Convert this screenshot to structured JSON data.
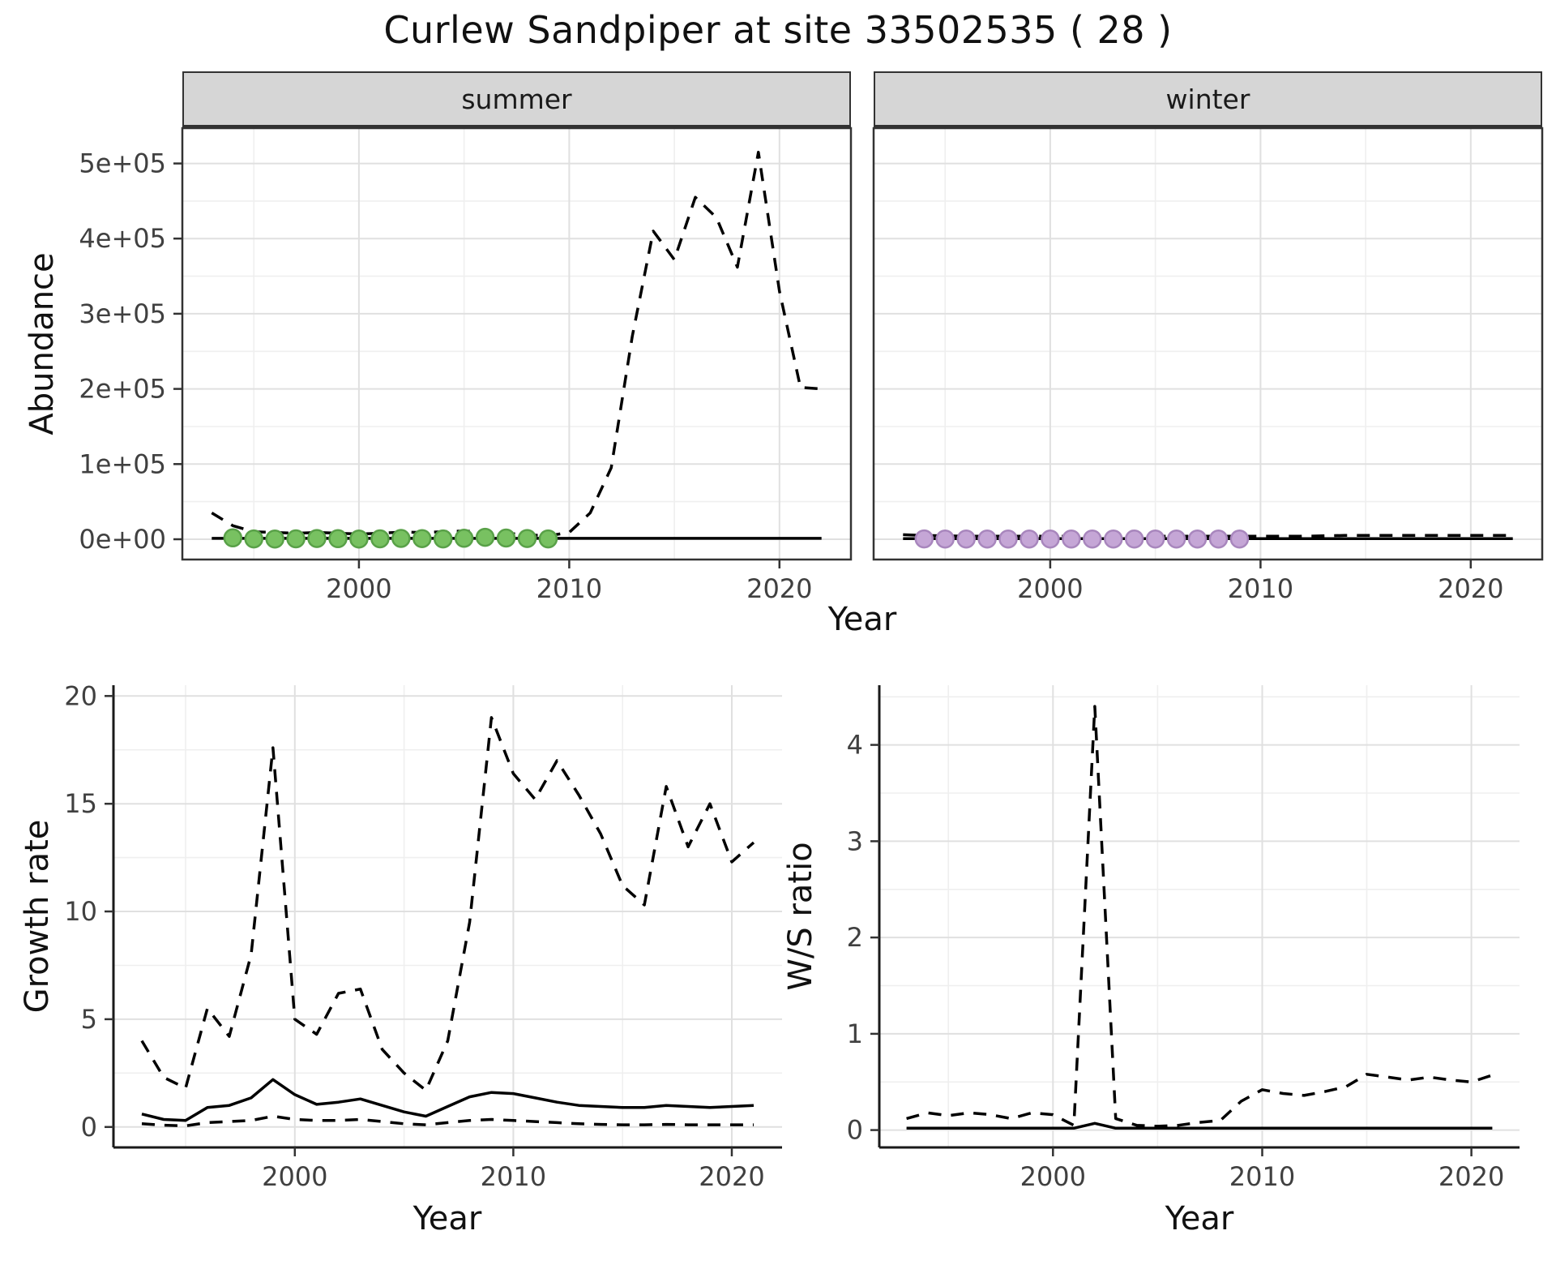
{
  "title": "Curlew Sandpiper at site 33502535 ( 28 )",
  "colors": {
    "line": "#000000",
    "grid_major": "#e0e0e0",
    "grid_minor": "#efefef",
    "strip_bg": "#d6d6d6",
    "summer_point_fill": "#78c161",
    "summer_point_stroke": "#59a148",
    "winter_point_fill": "#c5a6d6",
    "winter_point_stroke": "#a886bd"
  },
  "chart_data": [
    {
      "name": "abundance-summer",
      "type": "line",
      "facet": "summer",
      "xlabel": "Year",
      "ylabel": "Abundance",
      "xlim": [
        1991.6,
        2023.4
      ],
      "ylim": [
        -27000,
        547000
      ],
      "xticks": [
        2000,
        2010,
        2020
      ],
      "xtick_labels": [
        "2000",
        "2010",
        "2020"
      ],
      "yticks": [
        0,
        100000,
        200000,
        300000,
        400000,
        500000
      ],
      "ytick_labels": [
        "0e+00",
        "1e+05",
        "2e+05",
        "3e+05",
        "4e+05",
        "5e+05"
      ],
      "show_y_labels": true,
      "border": "box",
      "series": [
        {
          "name": "upper-ci",
          "style": "dashed",
          "x": [
            1993,
            1994,
            1995,
            1996,
            1997,
            1998,
            1999,
            2000,
            2001,
            2002,
            2003,
            2004,
            2005,
            2006,
            2007,
            2008,
            2009,
            2010,
            2011,
            2012,
            2013,
            2014,
            2015,
            2016,
            2017,
            2018,
            2019,
            2020,
            2021,
            2022
          ],
          "y": [
            35000,
            18000,
            10000,
            9000,
            8000,
            9000,
            8000,
            7000,
            8000,
            9500,
            9000,
            10000,
            11000,
            9500,
            8000,
            6000,
            4500,
            9000,
            35000,
            95000,
            270000,
            410000,
            372000,
            455000,
            428000,
            362000,
            515000,
            330000,
            202000,
            200000
          ]
        },
        {
          "name": "trend",
          "style": "solid",
          "x": [
            1993,
            1994,
            1995,
            1996,
            1997,
            1998,
            1999,
            2000,
            2001,
            2002,
            2003,
            2004,
            2005,
            2006,
            2007,
            2008,
            2009,
            2010,
            2011,
            2012,
            2013,
            2014,
            2015,
            2016,
            2017,
            2018,
            2019,
            2020,
            2021,
            2022
          ],
          "y": [
            1200,
            1200,
            1200,
            1200,
            1200,
            1200,
            1200,
            1200,
            1200,
            1200,
            1200,
            1200,
            1200,
            1200,
            1200,
            1200,
            1200,
            1200,
            1200,
            1200,
            1200,
            1200,
            1200,
            1200,
            1200,
            1200,
            1200,
            1200,
            1200,
            1200
          ]
        },
        {
          "name": "observed-counts",
          "style": "points",
          "fill": "#78c161",
          "stroke": "#59a148",
          "x": [
            1994,
            1995,
            1996,
            1997,
            1998,
            1999,
            2000,
            2001,
            2002,
            2003,
            2004,
            2005,
            2006,
            2007,
            2008,
            2009
          ],
          "y": [
            1800,
            400,
            300,
            500,
            900,
            700,
            350,
            550,
            1000,
            800,
            450,
            1300,
            2600,
            1600,
            900,
            450
          ]
        }
      ]
    },
    {
      "name": "abundance-winter",
      "type": "line",
      "facet": "winter",
      "xlabel": "Year",
      "ylabel": "Abundance",
      "xlim": [
        1991.6,
        2023.4
      ],
      "ylim": [
        -27000,
        547000
      ],
      "xticks": [
        2000,
        2010,
        2020
      ],
      "xtick_labels": [
        "2000",
        "2010",
        "2020"
      ],
      "yticks": [
        0,
        100000,
        200000,
        300000,
        400000,
        500000
      ],
      "ytick_labels": [
        "0e+00",
        "1e+05",
        "2e+05",
        "3e+05",
        "4e+05",
        "5e+05"
      ],
      "show_y_labels": false,
      "border": "box",
      "series": [
        {
          "name": "upper-ci",
          "style": "dashed",
          "x": [
            1993,
            1994,
            1995,
            1996,
            1997,
            1998,
            1999,
            2000,
            2001,
            2002,
            2003,
            2004,
            2005,
            2006,
            2007,
            2008,
            2009,
            2010,
            2011,
            2012,
            2013,
            2014,
            2015,
            2016,
            2017,
            2018,
            2019,
            2020,
            2021,
            2022
          ],
          "y": [
            6000,
            5000,
            4500,
            4000,
            4000,
            4000,
            4000,
            4000,
            4000,
            4000,
            4000,
            4000,
            4000,
            4000,
            4000,
            4000,
            4000,
            4000,
            4000,
            4000,
            4500,
            5000,
            5000,
            5000,
            5000,
            5000,
            5000,
            5000,
            5000,
            5000
          ]
        },
        {
          "name": "trend",
          "style": "solid",
          "x": [
            1993,
            1994,
            1995,
            1996,
            1997,
            1998,
            1999,
            2000,
            2001,
            2002,
            2003,
            2004,
            2005,
            2006,
            2007,
            2008,
            2009,
            2010,
            2011,
            2012,
            2013,
            2014,
            2015,
            2016,
            2017,
            2018,
            2019,
            2020,
            2021,
            2022
          ],
          "y": [
            700,
            700,
            700,
            700,
            700,
            700,
            700,
            700,
            700,
            700,
            700,
            700,
            700,
            700,
            700,
            700,
            700,
            700,
            700,
            700,
            700,
            700,
            700,
            700,
            700,
            700,
            700,
            700,
            700,
            700
          ]
        },
        {
          "name": "observed-counts",
          "style": "points",
          "fill": "#c5a6d6",
          "stroke": "#a886bd",
          "x": [
            1994,
            1995,
            1996,
            1997,
            1998,
            1999,
            2000,
            2001,
            2002,
            2003,
            2004,
            2005,
            2006,
            2007,
            2008,
            2009
          ],
          "y": [
            400,
            300,
            250,
            300,
            350,
            300,
            250,
            300,
            350,
            300,
            250,
            300,
            350,
            300,
            250,
            300
          ]
        }
      ]
    },
    {
      "name": "growth-rate",
      "type": "line",
      "facet": "",
      "xlabel": "Year",
      "ylabel": "Growth rate",
      "xlim": [
        1991.7,
        2022.3
      ],
      "ylim": [
        -0.95,
        20.5
      ],
      "xticks": [
        2000,
        2010,
        2020
      ],
      "xtick_labels": [
        "2000",
        "2010",
        "2020"
      ],
      "yticks": [
        0,
        5,
        10,
        15,
        20
      ],
      "ytick_labels": [
        "0",
        "5",
        "10",
        "15",
        "20"
      ],
      "show_y_labels": true,
      "border": "axes",
      "series": [
        {
          "name": "upper-ci",
          "style": "dashed",
          "x": [
            1993,
            1994,
            1995,
            1996,
            1997,
            1998,
            1999,
            2000,
            2001,
            2002,
            2003,
            2004,
            2005,
            2006,
            2007,
            2008,
            2009,
            2010,
            2011,
            2012,
            2013,
            2014,
            2015,
            2016,
            2017,
            2018,
            2019,
            2020,
            2021
          ],
          "y": [
            4.0,
            2.3,
            1.8,
            5.5,
            4.2,
            8.0,
            17.6,
            5.0,
            4.3,
            6.2,
            6.4,
            3.6,
            2.5,
            1.7,
            4.0,
            9.5,
            19.0,
            16.4,
            15.2,
            17.0,
            15.4,
            13.6,
            11.2,
            10.3,
            15.8,
            13.0,
            15.0,
            12.3,
            13.2
          ]
        },
        {
          "name": "lower-ci",
          "style": "dashed",
          "x": [
            1993,
            1994,
            1995,
            1996,
            1997,
            1998,
            1999,
            2000,
            2001,
            2002,
            2003,
            2004,
            2005,
            2006,
            2007,
            2008,
            2009,
            2010,
            2011,
            2012,
            2013,
            2014,
            2015,
            2016,
            2017,
            2018,
            2019,
            2020,
            2021
          ],
          "y": [
            0.15,
            0.08,
            0.05,
            0.2,
            0.25,
            0.3,
            0.5,
            0.35,
            0.3,
            0.3,
            0.35,
            0.25,
            0.15,
            0.1,
            0.2,
            0.3,
            0.35,
            0.3,
            0.25,
            0.2,
            0.15,
            0.12,
            0.1,
            0.1,
            0.12,
            0.1,
            0.1,
            0.1,
            0.1
          ]
        },
        {
          "name": "trend",
          "style": "solid",
          "x": [
            1993,
            1994,
            1995,
            1996,
            1997,
            1998,
            1999,
            2000,
            2001,
            2002,
            2003,
            2004,
            2005,
            2006,
            2007,
            2008,
            2009,
            2010,
            2011,
            2012,
            2013,
            2014,
            2015,
            2016,
            2017,
            2018,
            2019,
            2020,
            2021
          ],
          "y": [
            0.6,
            0.35,
            0.3,
            0.9,
            1.0,
            1.35,
            2.2,
            1.5,
            1.05,
            1.15,
            1.3,
            1.0,
            0.7,
            0.5,
            0.95,
            1.4,
            1.6,
            1.55,
            1.35,
            1.15,
            1.0,
            0.95,
            0.9,
            0.9,
            1.0,
            0.95,
            0.9,
            0.95,
            1.0
          ]
        }
      ]
    },
    {
      "name": "ws-ratio",
      "type": "line",
      "facet": "",
      "xlabel": "Year",
      "ylabel": "W/S ratio",
      "xlim": [
        1991.7,
        2022.3
      ],
      "ylim": [
        -0.18,
        4.62
      ],
      "xticks": [
        2000,
        2010,
        2020
      ],
      "xtick_labels": [
        "2000",
        "2010",
        "2020"
      ],
      "yticks": [
        0,
        1,
        2,
        3,
        4
      ],
      "ytick_labels": [
        "0",
        "1",
        "2",
        "3",
        "4"
      ],
      "show_y_labels": true,
      "border": "axes",
      "series": [
        {
          "name": "upper-ci",
          "style": "dashed",
          "x": [
            1993,
            1994,
            1995,
            1996,
            1997,
            1998,
            1999,
            2000,
            2001,
            2002,
            2003,
            2004,
            2005,
            2006,
            2007,
            2008,
            2009,
            2010,
            2011,
            2012,
            2013,
            2014,
            2015,
            2016,
            2017,
            2018,
            2019,
            2020,
            2021
          ],
          "y": [
            0.12,
            0.18,
            0.15,
            0.18,
            0.16,
            0.12,
            0.18,
            0.16,
            0.05,
            4.4,
            0.12,
            0.05,
            0.04,
            0.05,
            0.08,
            0.1,
            0.3,
            0.42,
            0.38,
            0.36,
            0.4,
            0.45,
            0.58,
            0.55,
            0.52,
            0.55,
            0.52,
            0.5,
            0.57
          ]
        },
        {
          "name": "trend",
          "style": "solid",
          "x": [
            1993,
            1994,
            1995,
            1996,
            1997,
            1998,
            1999,
            2000,
            2001,
            2002,
            2003,
            2004,
            2005,
            2006,
            2007,
            2008,
            2009,
            2010,
            2011,
            2012,
            2013,
            2014,
            2015,
            2016,
            2017,
            2018,
            2019,
            2020,
            2021
          ],
          "y": [
            0.02,
            0.02,
            0.02,
            0.02,
            0.02,
            0.02,
            0.02,
            0.02,
            0.02,
            0.07,
            0.02,
            0.02,
            0.02,
            0.02,
            0.02,
            0.02,
            0.02,
            0.02,
            0.02,
            0.02,
            0.02,
            0.02,
            0.02,
            0.02,
            0.02,
            0.02,
            0.02,
            0.02,
            0.02
          ]
        }
      ]
    }
  ]
}
